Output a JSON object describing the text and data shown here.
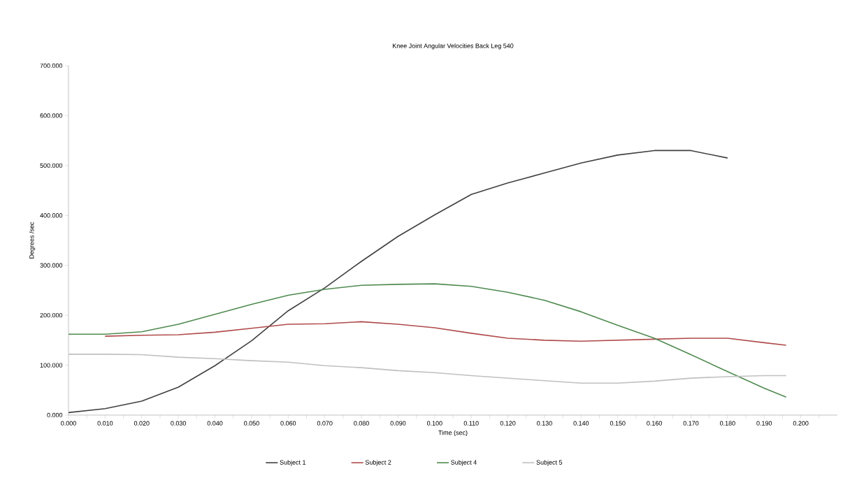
{
  "chart_data": {
    "type": "line",
    "title": "Knee Joint Angular Velocities Back Leg 540",
    "xlabel": "Time (sec)",
    "ylabel": "Degrees /sec",
    "xlim": [
      0,
      0.21
    ],
    "ylim": [
      0,
      700
    ],
    "xticks": [
      {
        "value": 0,
        "label": "0.000"
      },
      {
        "value": 0.005,
        "label": null
      },
      {
        "value": 0.01,
        "label": "0.010"
      },
      {
        "value": 0.015,
        "label": null
      },
      {
        "value": 0.02,
        "label": "0.020"
      },
      {
        "value": 0.025,
        "label": null
      },
      {
        "value": 0.03,
        "label": "0.030"
      },
      {
        "value": 0.035,
        "label": null
      },
      {
        "value": 0.04,
        "label": "0.040"
      },
      {
        "value": 0.045,
        "label": null
      },
      {
        "value": 0.05,
        "label": "0.050"
      },
      {
        "value": 0.055,
        "label": null
      },
      {
        "value": 0.06,
        "label": "0.060"
      },
      {
        "value": 0.065,
        "label": null
      },
      {
        "value": 0.07,
        "label": "0.070"
      },
      {
        "value": 0.075,
        "label": null
      },
      {
        "value": 0.08,
        "label": "0.080"
      },
      {
        "value": 0.085,
        "label": null
      },
      {
        "value": 0.09,
        "label": "0.090"
      },
      {
        "value": 0.095,
        "label": null
      },
      {
        "value": 0.1,
        "label": "0.100"
      },
      {
        "value": 0.105,
        "label": null
      },
      {
        "value": 0.11,
        "label": "0.110"
      },
      {
        "value": 0.115,
        "label": null
      },
      {
        "value": 0.12,
        "label": "0.120"
      },
      {
        "value": 0.125,
        "label": null
      },
      {
        "value": 0.13,
        "label": "0.130"
      },
      {
        "value": 0.135,
        "label": null
      },
      {
        "value": 0.14,
        "label": "0.140"
      },
      {
        "value": 0.145,
        "label": null
      },
      {
        "value": 0.15,
        "label": "0.150"
      },
      {
        "value": 0.155,
        "label": null
      },
      {
        "value": 0.16,
        "label": "0.160"
      },
      {
        "value": 0.165,
        "label": null
      },
      {
        "value": 0.17,
        "label": "0.170"
      },
      {
        "value": 0.175,
        "label": null
      },
      {
        "value": 0.18,
        "label": "0.180"
      },
      {
        "value": 0.185,
        "label": null
      },
      {
        "value": 0.19,
        "label": "0.190"
      },
      {
        "value": 0.195,
        "label": null
      },
      {
        "value": 0.2,
        "label": "0.200"
      },
      {
        "value": 0.205,
        "label": null
      }
    ],
    "yticks": [
      {
        "value": 0,
        "label": "0.000"
      },
      {
        "value": 100,
        "label": "100.000"
      },
      {
        "value": 200,
        "label": "200.000"
      },
      {
        "value": 300,
        "label": "300.000"
      },
      {
        "value": 400,
        "label": "400.000"
      },
      {
        "value": 500,
        "label": "500.000"
      },
      {
        "value": 600,
        "label": "600.000"
      },
      {
        "value": 700,
        "label": "700.000"
      }
    ],
    "grid": false,
    "legend": "bottom",
    "marker": "none",
    "line_style": "solid",
    "series": [
      {
        "name": "Subject 1",
        "color": "#404040",
        "x": [
          0,
          0.01,
          0.02,
          0.03,
          0.04,
          0.05,
          0.06,
          0.07,
          0.08,
          0.09,
          0.1,
          0.11,
          0.12,
          0.13,
          0.14,
          0.15,
          0.16,
          0.17,
          0.18
        ],
        "values": [
          5,
          13,
          28,
          56,
          99,
          149,
          209,
          255,
          308,
          358,
          401,
          442,
          465,
          485,
          505,
          521,
          530,
          530,
          515
        ]
      },
      {
        "name": "Subject 2",
        "color": "#b04a4a",
        "x": [
          0.01,
          0.02,
          0.03,
          0.04,
          0.05,
          0.06,
          0.07,
          0.08,
          0.09,
          0.1,
          0.11,
          0.12,
          0.13,
          0.14,
          0.15,
          0.16,
          0.17,
          0.18,
          0.19,
          0.196
        ],
        "values": [
          158,
          160,
          161,
          166,
          174,
          182,
          183,
          187,
          182,
          175,
          164,
          154,
          150,
          148,
          150,
          152,
          154,
          154,
          145,
          140
        ]
      },
      {
        "name": "Subject 4",
        "color": "#4f8a4f",
        "x": [
          0,
          0.01,
          0.02,
          0.03,
          0.04,
          0.05,
          0.06,
          0.07,
          0.08,
          0.09,
          0.1,
          0.11,
          0.12,
          0.13,
          0.14,
          0.15,
          0.16,
          0.17,
          0.18,
          0.19,
          0.196
        ],
        "values": [
          162,
          162,
          167,
          182,
          202,
          222,
          240,
          252,
          260,
          262,
          263,
          258,
          246,
          230,
          207,
          180,
          154,
          121,
          87,
          54,
          36
        ]
      },
      {
        "name": "Subject 5",
        "color": "#c0c0c0",
        "x": [
          0,
          0.01,
          0.02,
          0.03,
          0.04,
          0.05,
          0.06,
          0.07,
          0.08,
          0.09,
          0.1,
          0.11,
          0.12,
          0.13,
          0.14,
          0.15,
          0.16,
          0.17,
          0.18,
          0.19,
          0.196
        ],
        "values": [
          122,
          122,
          121,
          116,
          113,
          109,
          106,
          99,
          95,
          89,
          85,
          79,
          74,
          69,
          64,
          64,
          68,
          74,
          77,
          79,
          79
        ]
      }
    ]
  }
}
